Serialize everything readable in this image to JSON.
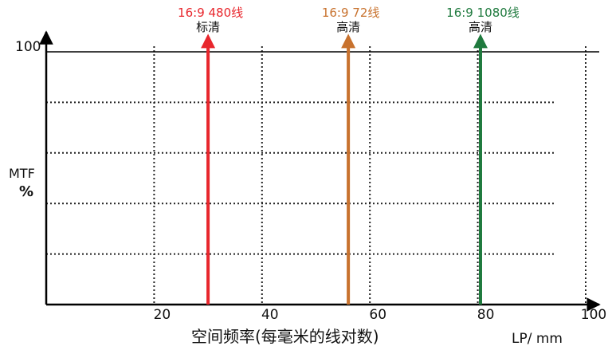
{
  "chart_data": {
    "type": "line",
    "title": "",
    "xlabel": "空间频率(每毫米的线对数)",
    "x_unit": "LP/ mm",
    "ylabel_line1": "MTF",
    "ylabel_line2": "%",
    "xlim": [
      0,
      100
    ],
    "ylim": [
      0,
      100
    ],
    "x_ticks": [
      20,
      40,
      60,
      80,
      100
    ],
    "y_ticks": [
      100
    ],
    "grid": "dotted",
    "markers": [
      {
        "x": 30,
        "line1": "16:9   480线",
        "line2": "标清",
        "color": "#e8262c"
      },
      {
        "x": 56,
        "line1": "16:9   72线",
        "line2": "高清",
        "color": "#c8722e"
      },
      {
        "x": 80.5,
        "line1": "16:9   1080线",
        "line2": "高清",
        "color": "#1f7a3e"
      }
    ]
  }
}
